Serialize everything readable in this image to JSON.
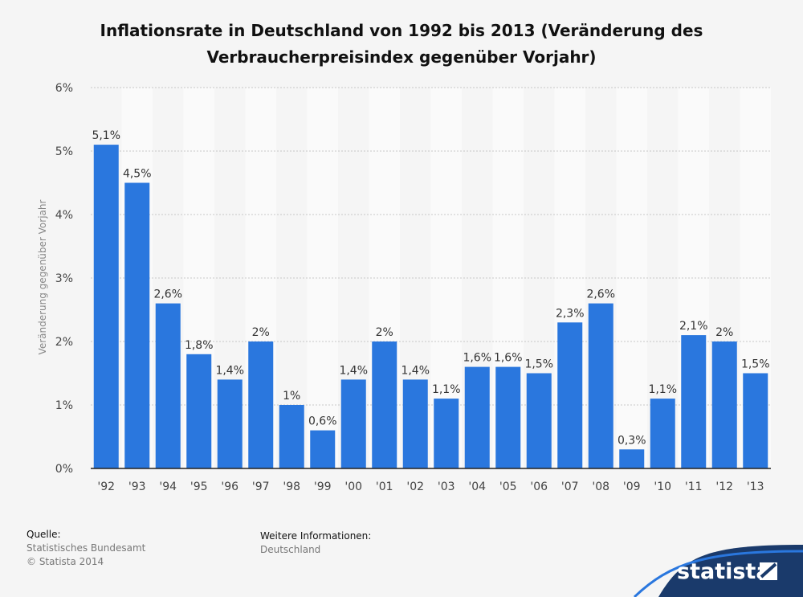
{
  "title_line1": "Inflationsrate in Deutschland von 1992 bis 2013 (Veränderung des",
  "title_line2": "Verbraucherpreisindex gegenüber Vorjahr)",
  "chart_data": {
    "type": "bar",
    "title": "Inflationsrate in Deutschland von 1992 bis 2013 (Veränderung des Verbraucherpreisindex gegenüber Vorjahr)",
    "xlabel": "",
    "ylabel": "Veränderung gegenüber Vorjahr",
    "categories": [
      "'92",
      "'93",
      "'94",
      "'95",
      "'96",
      "'97",
      "'98",
      "'99",
      "'00",
      "'01",
      "'02",
      "'03",
      "'04",
      "'05",
      "'06",
      "'07",
      "'08",
      "'09",
      "'10",
      "'11",
      "'12",
      "'13"
    ],
    "values": [
      5.1,
      4.5,
      2.6,
      1.8,
      1.4,
      2,
      1,
      0.6,
      1.4,
      2,
      1.4,
      1.1,
      1.6,
      1.6,
      1.5,
      2.3,
      2.6,
      0.3,
      1.1,
      2.1,
      2,
      1.5
    ],
    "value_labels": [
      "5,1%",
      "4,5%",
      "2,6%",
      "1,8%",
      "1,4%",
      "2%",
      "1%",
      "0,6%",
      "1,4%",
      "2%",
      "1,4%",
      "1,1%",
      "1,6%",
      "1,6%",
      "1,5%",
      "2,3%",
      "2,6%",
      "0,3%",
      "1,1%",
      "2,1%",
      "2%",
      "1,5%"
    ],
    "y_ticks": [
      "0%",
      "1%",
      "2%",
      "3%",
      "4%",
      "5%",
      "6%"
    ],
    "ylim": [
      0,
      6
    ],
    "grid": true,
    "bar_color": "#2a77de"
  },
  "footer": {
    "source_heading": "Quelle:",
    "source_line1": "Statistisches Bundesamt",
    "source_line2": "© Statista 2014",
    "info_heading": "Weitere Informationen:",
    "info_line1": "Deutschland"
  },
  "logo": {
    "text": "statista",
    "bg_color": "#1a3a6b"
  }
}
